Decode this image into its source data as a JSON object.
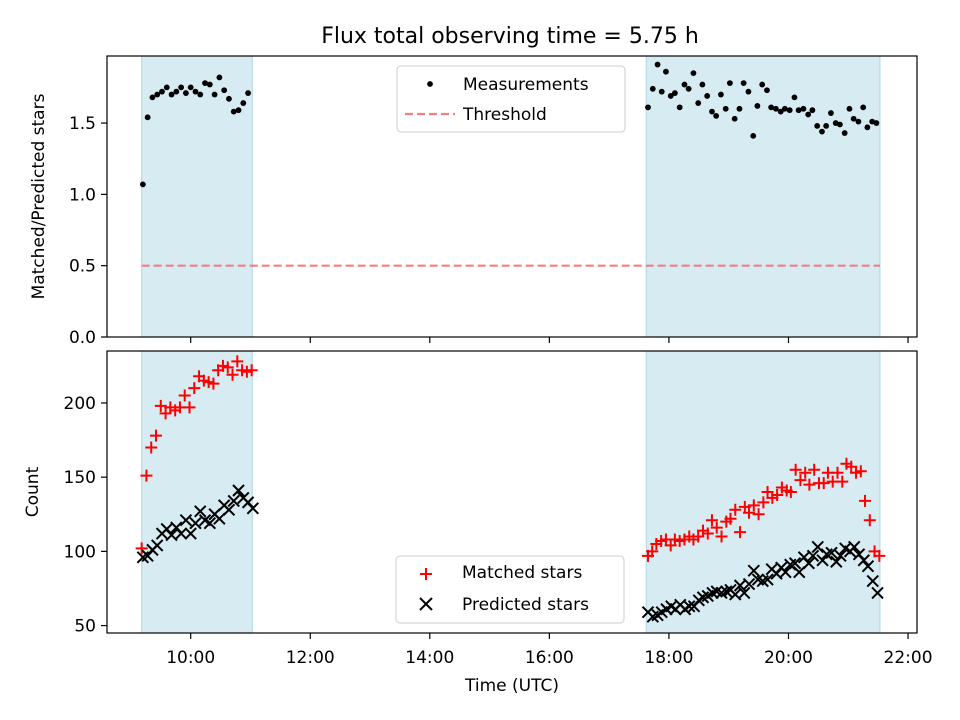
{
  "title": "Flux total observing time = 5.75 h",
  "colors": {
    "shade": "#add8e6",
    "measurement": "#000000",
    "threshold": "#f08080",
    "matched": "#ff0000",
    "predicted": "#000000"
  },
  "chart_data": [
    {
      "type": "scatter",
      "ylabel": "Matched/Predicted stars",
      "xlim": [
        8.6,
        22.15
      ],
      "ylim": [
        0,
        1.97
      ],
      "yticks": [
        0.0,
        0.5,
        1.0,
        1.5
      ],
      "ytick_labels": [
        "0.0",
        "0.5",
        "1.0",
        "1.5"
      ],
      "observing_windows": [
        [
          9.18,
          11.03
        ],
        [
          17.62,
          21.53
        ]
      ],
      "threshold": {
        "value": 0.5,
        "x_range": [
          9.18,
          21.53
        ]
      },
      "legend": {
        "position": "upper center",
        "entries": [
          "Measurements",
          "Threshold"
        ]
      },
      "series": [
        {
          "name": "Measurements",
          "x": [
            9.2,
            9.28,
            9.36,
            9.44,
            9.52,
            9.6,
            9.68,
            9.76,
            9.84,
            9.92,
            10.0,
            10.08,
            10.16,
            10.24,
            10.32,
            10.4,
            10.48,
            10.56,
            10.64,
            10.72,
            10.8,
            10.88,
            10.96,
            17.65,
            17.73,
            17.81,
            17.88,
            17.95,
            18.03,
            18.1,
            18.18,
            18.26,
            18.33,
            18.41,
            18.49,
            18.56,
            18.64,
            18.72,
            18.79,
            18.87,
            18.95,
            19.02,
            19.1,
            19.18,
            19.25,
            19.33,
            19.41,
            19.48,
            19.56,
            19.64,
            19.71,
            19.79,
            19.87,
            19.94,
            20.02,
            20.1,
            20.17,
            20.25,
            20.33,
            20.4,
            20.48,
            20.56,
            20.63,
            20.71,
            20.79,
            20.86,
            20.94,
            21.02,
            21.09,
            21.17,
            21.25,
            21.32,
            21.4,
            21.47
          ],
          "y": [
            1.07,
            1.54,
            1.68,
            1.7,
            1.72,
            1.75,
            1.7,
            1.72,
            1.75,
            1.71,
            1.75,
            1.72,
            1.7,
            1.78,
            1.77,
            1.7,
            1.82,
            1.73,
            1.67,
            1.58,
            1.59,
            1.64,
            1.71,
            1.61,
            1.74,
            1.91,
            1.72,
            1.86,
            1.69,
            1.71,
            1.61,
            1.77,
            1.74,
            1.85,
            1.64,
            1.77,
            1.69,
            1.58,
            1.55,
            1.7,
            1.6,
            1.78,
            1.53,
            1.6,
            1.78,
            1.72,
            1.41,
            1.62,
            1.77,
            1.73,
            1.61,
            1.6,
            1.58,
            1.6,
            1.59,
            1.68,
            1.59,
            1.6,
            1.56,
            1.59,
            1.48,
            1.44,
            1.48,
            1.57,
            1.5,
            1.49,
            1.43,
            1.6,
            1.53,
            1.51,
            1.61,
            1.47,
            1.51,
            1.5
          ]
        }
      ]
    },
    {
      "type": "scatter",
      "ylabel": "Count",
      "xlabel": "Time (UTC)",
      "xlim": [
        8.6,
        22.15
      ],
      "ylim": [
        45,
        235
      ],
      "xticks": [
        10,
        12,
        14,
        16,
        18,
        20,
        22
      ],
      "xtick_labels": [
        "10:00",
        "12:00",
        "14:00",
        "16:00",
        "18:00",
        "20:00",
        "22:00"
      ],
      "yticks": [
        50,
        100,
        150,
        200
      ],
      "ytick_labels": [
        "50",
        "100",
        "150",
        "200"
      ],
      "observing_windows": [
        [
          9.18,
          11.03
        ],
        [
          17.62,
          21.53
        ]
      ],
      "legend": {
        "position": "lower center",
        "entries": [
          "Matched stars",
          "Predicted stars"
        ]
      },
      "series": [
        {
          "name": "Matched stars",
          "marker": "+",
          "x": [
            9.18,
            9.26,
            9.34,
            9.42,
            9.5,
            9.58,
            9.66,
            9.74,
            9.82,
            9.9,
            9.98,
            10.06,
            10.14,
            10.22,
            10.3,
            10.38,
            10.46,
            10.54,
            10.62,
            10.7,
            10.78,
            10.86,
            10.94,
            11.02,
            17.65,
            17.72,
            17.79,
            17.87,
            17.95,
            18.03,
            18.1,
            18.18,
            18.26,
            18.34,
            18.41,
            18.49,
            18.57,
            18.65,
            18.72,
            18.8,
            18.88,
            18.96,
            19.03,
            19.11,
            19.19,
            19.27,
            19.34,
            19.42,
            19.5,
            19.58,
            19.65,
            19.73,
            19.81,
            19.89,
            19.97,
            20.04,
            20.12,
            20.2,
            20.28,
            20.35,
            20.43,
            20.51,
            20.59,
            20.66,
            20.74,
            20.82,
            20.9,
            20.97,
            21.05,
            21.13,
            21.21,
            21.28,
            21.36,
            21.44,
            21.52
          ],
          "y": [
            102,
            151,
            170,
            178,
            198,
            193,
            197,
            195,
            197,
            205,
            197,
            210,
            218,
            215,
            214,
            213,
            222,
            225,
            224,
            219,
            228,
            222,
            221,
            222,
            97,
            100,
            105,
            107,
            108,
            104,
            108,
            107,
            108,
            110,
            108,
            110,
            114,
            112,
            121,
            116,
            110,
            120,
            122,
            128,
            113,
            130,
            126,
            131,
            125,
            133,
            140,
            136,
            138,
            143,
            141,
            140,
            155,
            148,
            153,
            145,
            155,
            146,
            146,
            153,
            147,
            153,
            147,
            159,
            157,
            153,
            154,
            134,
            121,
            100,
            97
          ]
        },
        {
          "name": "Predicted stars",
          "marker": "x",
          "x": [
            9.2,
            9.28,
            9.36,
            9.44,
            9.52,
            9.6,
            9.68,
            9.76,
            9.84,
            9.92,
            10.0,
            10.08,
            10.16,
            10.24,
            10.32,
            10.4,
            10.48,
            10.56,
            10.64,
            10.72,
            10.8,
            10.88,
            10.96,
            11.04,
            17.65,
            17.73,
            17.81,
            17.88,
            17.96,
            18.04,
            18.11,
            18.19,
            18.27,
            18.34,
            18.42,
            18.5,
            18.57,
            18.65,
            18.73,
            18.8,
            18.88,
            18.96,
            19.03,
            19.11,
            19.19,
            19.26,
            19.34,
            19.42,
            19.49,
            19.57,
            19.65,
            19.72,
            19.8,
            19.88,
            19.95,
            20.03,
            20.11,
            20.18,
            20.26,
            20.34,
            20.41,
            20.49,
            20.57,
            20.64,
            20.72,
            20.8,
            20.87,
            20.95,
            21.03,
            21.1,
            21.18,
            21.26,
            21.33,
            21.41,
            21.49
          ],
          "y": [
            96,
            97,
            101,
            104,
            112,
            115,
            111,
            116,
            112,
            121,
            112,
            119,
            127,
            121,
            119,
            125,
            122,
            131,
            128,
            134,
            141,
            136,
            133,
            129,
            59,
            56,
            57,
            59,
            61,
            63,
            61,
            64,
            61,
            63,
            63,
            67,
            69,
            70,
            72,
            73,
            72,
            73,
            74,
            71,
            77,
            72,
            78,
            87,
            81,
            80,
            81,
            88,
            85,
            89,
            86,
            91,
            92,
            86,
            96,
            92,
            97,
            103,
            94,
            98,
            99,
            93,
            97,
            102,
            100,
            103,
            98,
            94,
            90,
            80,
            72
          ]
        }
      ]
    }
  ]
}
